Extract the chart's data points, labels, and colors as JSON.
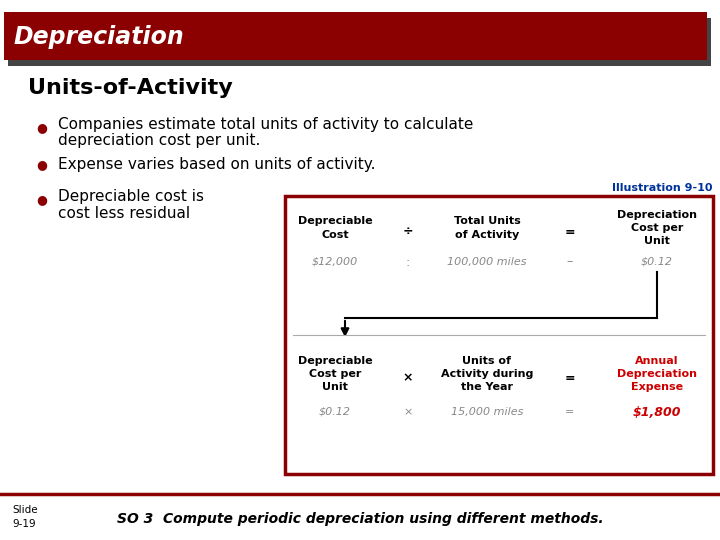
{
  "title_bar_text": "Depreciation",
  "title_bar_color": "#8B0000",
  "title_bar_shadow": "#444444",
  "title_text_color": "#FFFFFF",
  "section_title": "Units-of-Activity",
  "bullet1_line1": "Companies estimate total units of activity to calculate",
  "bullet1_line2": "depreciation cost per unit.",
  "bullet2": "Expense varies based on units of activity.",
  "bullet3_line1": "Depreciable cost is",
  "bullet3_line2": "cost less residual",
  "bullet_color": "#8B0000",
  "illustration_label": "Illustration 9-10",
  "illustration_label_color": "#003399",
  "box_border_color": "#8B0000",
  "box_bg": "#FFFFFF",
  "result_color": "#CC0000",
  "slide_text": "Slide\n9-19",
  "footer_text": "SO 3  Compute periodic depreciation using different methods.",
  "footer_line_color": "#8B0000",
  "bg_color": "#FFFFFF",
  "text_color": "#000000",
  "value_color": "#888888"
}
